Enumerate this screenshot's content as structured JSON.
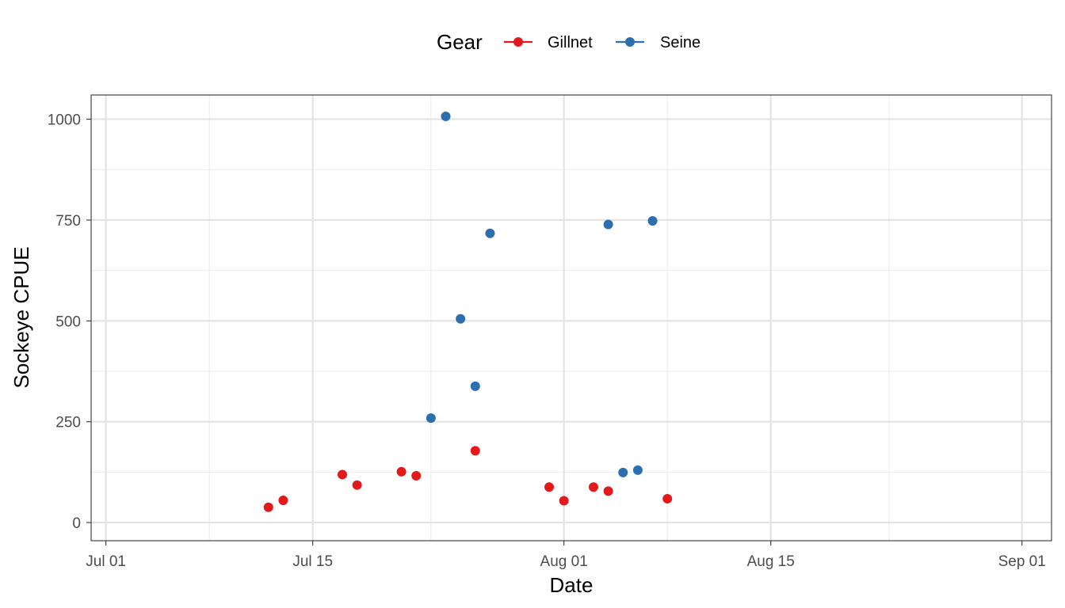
{
  "chart_data": {
    "type": "scatter",
    "title": "",
    "xlabel": "Date",
    "ylabel": "Sockeye CPUE",
    "xlim": [
      "2023-06-30",
      "2023-09-03"
    ],
    "ylim": [
      -45,
      1060
    ],
    "x_major_ticks": [
      "2023-07-01",
      "2023-07-15",
      "2023-08-01",
      "2023-08-15",
      "2023-09-01"
    ],
    "x_minor_ticks": [
      "2023-07-08",
      "2023-07-23",
      "2023-08-08",
      "2023-08-23"
    ],
    "x_tick_labels": [
      "Jul 01",
      "Jul 15",
      "Aug 01",
      "Aug 15",
      "Sep 01"
    ],
    "y_major_ticks": [
      0,
      250,
      500,
      750,
      1000
    ],
    "y_minor_ticks": [
      125,
      375,
      625,
      875
    ],
    "y_tick_labels": [
      "0",
      "250",
      "500",
      "750",
      "1000"
    ],
    "grid": true,
    "legend": {
      "title": "Gear",
      "position": "top"
    },
    "series": [
      {
        "name": "Gillnet",
        "color": "#e31a1c",
        "points": [
          {
            "x": "2023-07-12",
            "y": 38
          },
          {
            "x": "2023-07-13",
            "y": 55
          },
          {
            "x": "2023-07-17",
            "y": 119
          },
          {
            "x": "2023-07-18",
            "y": 93
          },
          {
            "x": "2023-07-21",
            "y": 126
          },
          {
            "x": "2023-07-22",
            "y": 116
          },
          {
            "x": "2023-07-26",
            "y": 178
          },
          {
            "x": "2023-07-31",
            "y": 88
          },
          {
            "x": "2023-08-01",
            "y": 54
          },
          {
            "x": "2023-08-03",
            "y": 88
          },
          {
            "x": "2023-08-04",
            "y": 78
          },
          {
            "x": "2023-08-08",
            "y": 59
          }
        ]
      },
      {
        "name": "Seine",
        "color": "#2c6fb0",
        "points": [
          {
            "x": "2023-07-23",
            "y": 259
          },
          {
            "x": "2023-07-24",
            "y": 1007
          },
          {
            "x": "2023-07-25",
            "y": 505
          },
          {
            "x": "2023-07-26",
            "y": 338
          },
          {
            "x": "2023-07-27",
            "y": 717
          },
          {
            "x": "2023-08-04",
            "y": 739
          },
          {
            "x": "2023-08-05",
            "y": 124
          },
          {
            "x": "2023-08-06",
            "y": 130
          },
          {
            "x": "2023-08-07",
            "y": 748
          }
        ]
      }
    ]
  }
}
